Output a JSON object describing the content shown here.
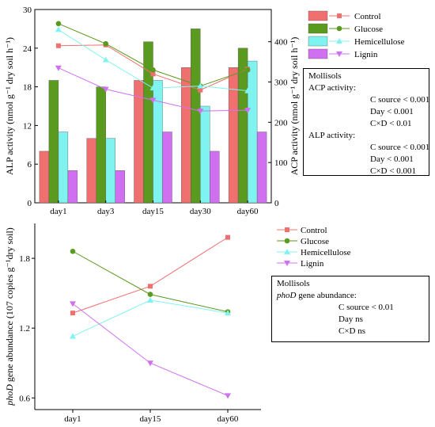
{
  "chart_data": [
    {
      "type": "bar+line",
      "categories": [
        "day1",
        "day3",
        "day15",
        "day30",
        "day60"
      ],
      "ylabel_left": "ALP activity (nmol g⁻¹ dry soil h⁻¹)",
      "ylabel_right": "ACP activity (nmol g⁻¹ dry soil h⁻¹)",
      "ylim_left": [
        0,
        30
      ],
      "yticks_left": [
        0,
        6,
        12,
        18,
        24,
        30
      ],
      "ylim_right": [
        0,
        480
      ],
      "yticks_right": [
        0,
        100,
        200,
        300,
        400
      ],
      "series": [
        {
          "name": "Control",
          "color": "#f07070",
          "marker": "square",
          "bar_values": [
            8,
            10,
            19,
            21,
            21
          ],
          "line_values": [
            390,
            392,
            320,
            280,
            332
          ]
        },
        {
          "name": "Glucose",
          "color": "#5a9a1e",
          "marker": "circle",
          "bar_values": [
            19,
            18,
            25,
            27,
            24
          ],
          "line_values": [
            445,
            395,
            330,
            290,
            330
          ]
        },
        {
          "name": "Hemicellulose",
          "color": "#7ff3f0",
          "marker": "triangle-up",
          "bar_values": [
            11,
            10,
            19,
            15,
            22
          ],
          "line_values": [
            430,
            355,
            285,
            290,
            278
          ]
        },
        {
          "name": "Lignin",
          "color": "#d070f0",
          "marker": "triangle-down",
          "bar_values": [
            5,
            5,
            11,
            8,
            11
          ],
          "line_values": [
            335,
            282,
            255,
            228,
            230
          ]
        }
      ],
      "stats": {
        "title": "Mollisols",
        "acp_label": "ACP activity:",
        "acp_lines": [
          "C source < 0.001",
          "Day < 0.001",
          "C×D < 0.01"
        ],
        "alp_label": "ALP activity:",
        "alp_lines": [
          "C source < 0.001",
          "Day < 0.001",
          "C×D < 0.001"
        ]
      }
    },
    {
      "type": "line",
      "categories": [
        "day1",
        "day15",
        "day60"
      ],
      "ylabel_italic": "phoD",
      "ylabel": " gene abundance (107 copies g⁻¹dry soil)",
      "ylim": [
        0.5,
        2.1
      ],
      "yticks": [
        0.6,
        1.2,
        1.8
      ],
      "series": [
        {
          "name": "Control",
          "color": "#f07070",
          "marker": "square",
          "values": [
            1.33,
            1.56,
            1.98
          ]
        },
        {
          "name": "Glucose",
          "color": "#5a9a1e",
          "marker": "circle",
          "values": [
            1.86,
            1.49,
            1.34
          ]
        },
        {
          "name": "Hemicellulose",
          "color": "#7ff3f0",
          "marker": "triangle-up",
          "values": [
            1.13,
            1.44,
            1.33
          ]
        },
        {
          "name": "Lignin",
          "color": "#d070f0",
          "marker": "triangle-down",
          "values": [
            1.41,
            0.9,
            0.62
          ]
        }
      ],
      "stats": {
        "title": "Mollisols",
        "label_italic": "phoD",
        "label_rest": " gene abundance:",
        "lines": [
          "C source < 0.01",
          "Day ns",
          "C×D ns"
        ]
      }
    }
  ]
}
